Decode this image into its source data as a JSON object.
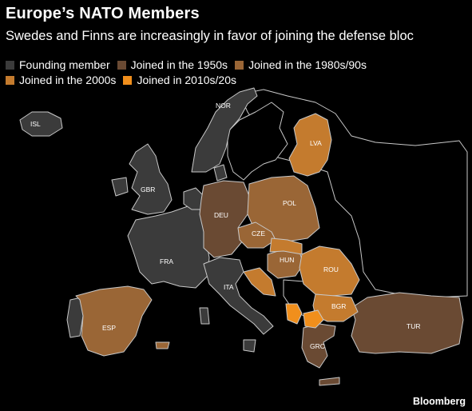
{
  "title": "Europe’s NATO Members",
  "subtitle": "Swedes and Finns are increasingly in favor of joining the defense bloc",
  "legend": [
    {
      "label": "Founding member",
      "color": "#3b3b3b"
    },
    {
      "label": "Joined in the 1950s",
      "color": "#6a4a33"
    },
    {
      "label": "Joined in the 1980s/90s",
      "color": "#9a6636"
    },
    {
      "label": "Joined in the 2000s",
      "color": "#c47b2e"
    },
    {
      "label": "Joined in 2010s/20s",
      "color": "#f18f1c"
    }
  ],
  "outline_color": "#c8c8c8",
  "countries": [
    {
      "code": "NOR",
      "group": 0
    },
    {
      "code": "ISL",
      "group": 0
    },
    {
      "code": "GBR",
      "group": 0
    },
    {
      "code": "FRA",
      "group": 0
    },
    {
      "code": "ITA",
      "group": 0
    },
    {
      "code": "DEU",
      "group": 1
    },
    {
      "code": "TUR",
      "group": 1
    },
    {
      "code": "GRC",
      "group": 1
    },
    {
      "code": "ESP",
      "group": 2
    },
    {
      "code": "POL",
      "group": 2
    },
    {
      "code": "CZE",
      "group": 2
    },
    {
      "code": "HUN",
      "group": 2
    },
    {
      "code": "LVA",
      "group": 3
    },
    {
      "code": "ROU",
      "group": 3
    },
    {
      "code": "BGR",
      "group": 3
    }
  ],
  "source": "Bloomberg"
}
